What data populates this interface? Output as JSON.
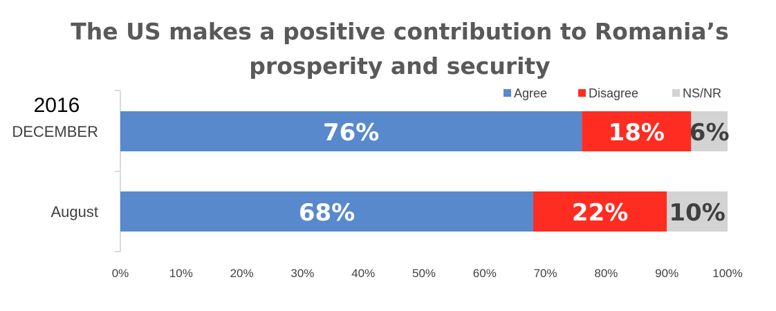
{
  "chart_data": {
    "type": "bar",
    "orientation": "horizontal",
    "stacked": true,
    "title_lines": [
      "The US makes a positive contribution to Romania’s",
      "prosperity and security"
    ],
    "group_label": "2016",
    "categories": [
      "DECEMBER",
      "August"
    ],
    "series": [
      {
        "name": "Agree",
        "color": "#5889cc",
        "label_color": "#ffffff",
        "values": [
          76,
          68
        ],
        "labels": [
          "76%",
          "68%"
        ]
      },
      {
        "name": "Disagree",
        "color": "#ff2c22",
        "label_color": "#ffffff",
        "values": [
          18,
          22
        ],
        "labels": [
          "18%",
          "22%"
        ]
      },
      {
        "name": "NS/NR",
        "color": "#d3d3d3",
        "label_color": "#404040",
        "values": [
          6,
          10
        ],
        "labels": [
          "6%",
          "10%"
        ]
      }
    ],
    "xlim": [
      0,
      100
    ],
    "xticks": [
      0,
      10,
      20,
      30,
      40,
      50,
      60,
      70,
      80,
      90,
      100
    ],
    "xtick_labels": [
      "0%",
      "10%",
      "20%",
      "30%",
      "40%",
      "50%",
      "60%",
      "70%",
      "80%",
      "90%",
      "100%"
    ],
    "legend_position": "top-right",
    "grid": false
  }
}
